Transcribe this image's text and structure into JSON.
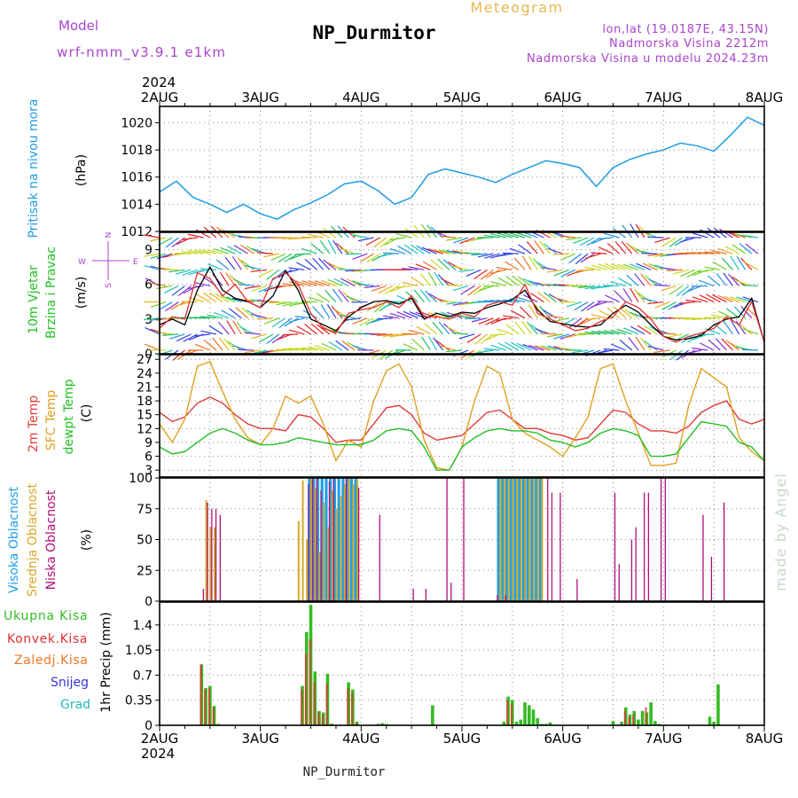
{
  "header": {
    "model_label": "Model",
    "model_name": "wrf-nmm_v3.9.1 e1km",
    "title": "Meteogram",
    "station": "NP_Durmitor",
    "lonlat": "lon,lat (19.0187E, 43.15N)",
    "altitude": "Nadmorska Visina 2212m",
    "model_altitude": "Nadmorska Visina u modelu 2024.23m",
    "footer_station": "NP_Durmitor",
    "watermark": "made by Angel"
  },
  "time_axis": {
    "year": "2024",
    "labels": [
      "2AUG",
      "3AUG",
      "4AUG",
      "5AUG",
      "6AUG",
      "7AUG",
      "8AUG"
    ],
    "hours": 144
  },
  "colors": {
    "pressure": "#1e9be6",
    "wind_speed": "#000000",
    "gust": "#e03030",
    "temp_2m": "#e03a3a",
    "temp_sfc": "#e0a020",
    "dewpoint": "#22c022",
    "cloud_high": "#1ea0e6",
    "cloud_mid": "#d4a82a",
    "cloud_low": "#b0107a",
    "precip_total": "#33bb22",
    "precip_conv": "#e03030",
    "precip_frz": "#ee7722",
    "snow": "#3333dd",
    "hail": "#22bbbb",
    "label_green": "#22c022",
    "label_purple": "#aa44cc",
    "label_orange": "#e8b850",
    "label_cyan": "#1ea0e6"
  },
  "panels": {
    "pressure": {
      "labels": [
        "Pritisak na nivou mora",
        "(hPa)"
      ],
      "ticks": [
        "1012",
        "1014",
        "1016",
        "1018",
        "1020"
      ]
    },
    "wind": {
      "labels": [
        "10m Vjetar",
        "Brzina i Pravac",
        "(m/s)"
      ],
      "compass": [
        "N",
        "S",
        "W",
        "E"
      ],
      "ticks": [
        "0",
        "3",
        "6",
        "9"
      ]
    },
    "temp": {
      "labels": [
        "2m Temp",
        "SFC Temp",
        "dewpt Temp",
        "(C)"
      ],
      "ticks": [
        "3",
        "6",
        "9",
        "12",
        "15",
        "18",
        "21",
        "24",
        "27"
      ]
    },
    "cloud": {
      "labels": [
        "Visoka Oblacnost",
        "Srednja Oblacnost",
        "Niska Oblacnost",
        "(%)"
      ],
      "ticks": [
        "0",
        "25",
        "50",
        "75",
        "100"
      ]
    },
    "precip": {
      "labels": [
        "1hr Precip (mm)"
      ],
      "legend": [
        "Ukupna Kisa",
        "Konvek.Kisa",
        "Zaledj.Kisa",
        "Snijeg",
        "Grad"
      ],
      "ticks": [
        "0",
        "0.35",
        "0.7",
        "1.05",
        "1.4"
      ]
    }
  },
  "chart_data": [
    {
      "type": "line",
      "title": "Pritisak na nivou mora",
      "ylabel": "(hPa)",
      "ylim": [
        1012,
        1021.2
      ],
      "series": [
        {
          "x_hours": [
            0,
            4,
            8,
            12,
            16,
            20,
            24,
            28,
            32,
            36,
            40,
            44,
            48,
            52,
            56,
            60,
            64,
            68,
            72,
            76,
            80,
            84,
            88,
            92,
            96,
            100,
            104,
            108,
            112,
            116,
            120,
            124,
            128,
            132,
            136,
            140,
            144
          ],
          "values": [
            1014.9,
            1015.7,
            1014.5,
            1014.0,
            1013.4,
            1014.0,
            1013.3,
            1012.9,
            1013.6,
            1014.1,
            1014.7,
            1015.5,
            1015.7,
            1015.0,
            1014.0,
            1014.5,
            1016.2,
            1016.6,
            1016.3,
            1016.0,
            1015.6,
            1016.2,
            1016.7,
            1017.2,
            1017.0,
            1016.7,
            1015.3,
            1016.7,
            1017.3,
            1017.7,
            1018.0,
            1018.5,
            1018.3,
            1017.9,
            1019.1,
            1020.4,
            1019.8
          ]
        }
      ]
    },
    {
      "type": "line",
      "title": "10m Vjetar Brzina i Pravac",
      "ylabel": "(m/s)",
      "ylim": [
        0,
        10.5
      ],
      "series": [
        {
          "x_hours": [
            0,
            3,
            6,
            9,
            12,
            15,
            18,
            21,
            24,
            27,
            30,
            33,
            36,
            39,
            42,
            45,
            48,
            51,
            54,
            57,
            60,
            63,
            66,
            69,
            72,
            75,
            78,
            81,
            84,
            87,
            90,
            93,
            96,
            99,
            102,
            105,
            108,
            111,
            114,
            117,
            120,
            123,
            126,
            129,
            132,
            135,
            138,
            141,
            144
          ],
          "values": [
            2.5,
            3.0,
            2.5,
            5.5,
            7.5,
            5.5,
            4.8,
            4.5,
            4.0,
            5.0,
            7.2,
            5.5,
            3.0,
            2.5,
            2.0,
            3.2,
            4.0,
            4.5,
            4.6,
            4.3,
            4.8,
            3.0,
            3.5,
            3.2,
            3.6,
            3.5,
            4.0,
            4.3,
            4.7,
            5.5,
            3.8,
            2.8,
            2.6,
            2.4,
            2.3,
            2.5,
            3.5,
            4.2,
            3.6,
            2.5,
            1.5,
            1.2,
            1.3,
            1.6,
            2.5,
            3.0,
            3.2,
            4.8,
            1.0
          ]
        },
        {
          "x_hours": [
            0,
            3,
            6,
            9,
            12,
            15,
            18,
            21,
            24,
            27,
            30,
            33,
            36,
            39,
            42,
            45,
            48,
            51,
            54,
            57,
            60,
            63,
            66,
            69,
            72,
            75,
            78,
            81,
            84,
            87,
            90,
            93,
            96,
            99,
            102,
            105,
            108,
            111,
            114,
            117,
            120,
            123,
            126,
            129,
            132,
            135,
            138,
            141,
            144
          ],
          "values": [
            2.2,
            3.2,
            3.0,
            7.0,
            6.5,
            5.0,
            6.0,
            4.5,
            4.0,
            6.5,
            7.0,
            6.0,
            3.5,
            2.2,
            1.8,
            3.5,
            3.8,
            4.0,
            4.5,
            4.0,
            5.0,
            3.2,
            3.2,
            3.0,
            3.5,
            3.2,
            4.2,
            4.5,
            4.2,
            6.0,
            3.5,
            3.0,
            2.5,
            2.0,
            2.2,
            2.8,
            3.2,
            4.5,
            4.0,
            3.0,
            1.5,
            1.0,
            1.5,
            1.8,
            2.2,
            3.2,
            2.5,
            4.5,
            1.0
          ]
        }
      ]
    },
    {
      "type": "line",
      "title": "Temp",
      "ylabel": "(C)",
      "ylim": [
        1.5,
        28
      ],
      "series": [
        {
          "x_hours": [
            0,
            3,
            6,
            9,
            12,
            15,
            18,
            21,
            24,
            27,
            30,
            33,
            36,
            39,
            42,
            45,
            48,
            51,
            54,
            57,
            60,
            63,
            66,
            69,
            72,
            75,
            78,
            81,
            84,
            87,
            90,
            93,
            96,
            99,
            102,
            105,
            108,
            111,
            114,
            117,
            120,
            123,
            126,
            129,
            132,
            135,
            138,
            141,
            144
          ],
          "values": [
            15.5,
            13.5,
            14.5,
            17.5,
            18.8,
            17.5,
            15.0,
            13.0,
            12.0,
            12.0,
            11.5,
            15.0,
            14.5,
            12.0,
            9.0,
            9.5,
            9.5,
            13.0,
            16.5,
            17.0,
            15.0,
            11.0,
            9.5,
            10.0,
            10.5,
            13.0,
            15.5,
            16.0,
            14.0,
            12.0,
            12.0,
            11.0,
            10.5,
            9.5,
            10.0,
            13.0,
            16.0,
            15.5,
            13.0,
            11.5,
            11.5,
            11.0,
            12.5,
            15.5,
            17.0,
            18.0,
            14.0,
            13.0,
            14.0
          ]
        },
        {
          "x_hours": [
            0,
            3,
            6,
            9,
            12,
            15,
            18,
            21,
            24,
            27,
            30,
            33,
            36,
            39,
            42,
            45,
            48,
            51,
            54,
            57,
            60,
            63,
            66,
            69,
            72,
            75,
            78,
            81,
            84,
            87,
            90,
            93,
            96,
            99,
            102,
            105,
            108,
            111,
            114,
            117,
            120,
            123,
            126,
            129,
            132,
            135,
            138,
            141,
            144
          ],
          "values": [
            13.0,
            9.0,
            14.0,
            25.5,
            26.5,
            20.0,
            14.0,
            10.0,
            8.5,
            12.0,
            19.0,
            17.5,
            19.0,
            13.0,
            5.0,
            9.5,
            8.0,
            18.0,
            24.5,
            26.0,
            21.0,
            9.5,
            3.5,
            3.0,
            8.0,
            18.0,
            25.5,
            24.0,
            14.0,
            11.0,
            9.5,
            8.0,
            6.0,
            10.0,
            14.5,
            25.0,
            26.0,
            18.0,
            11.0,
            4.0,
            4.0,
            4.5,
            17.0,
            25.0,
            23.0,
            21.0,
            10.0,
            7.0,
            5.0
          ]
        },
        {
          "x_hours": [
            0,
            3,
            6,
            9,
            12,
            15,
            18,
            21,
            24,
            27,
            30,
            33,
            36,
            39,
            42,
            45,
            48,
            51,
            54,
            57,
            60,
            63,
            66,
            69,
            72,
            75,
            78,
            81,
            84,
            87,
            90,
            93,
            96,
            99,
            102,
            105,
            108,
            111,
            114,
            117,
            120,
            123,
            126,
            129,
            132,
            135,
            138,
            141,
            144
          ],
          "values": [
            8.0,
            6.5,
            7.0,
            9.0,
            11.0,
            12.0,
            11.0,
            9.5,
            8.5,
            8.5,
            9.0,
            10.0,
            9.5,
            9.0,
            8.5,
            8.5,
            8.5,
            9.5,
            11.5,
            12.0,
            11.5,
            8.0,
            3.0,
            3.0,
            8.0,
            10.0,
            11.5,
            12.0,
            11.5,
            11.5,
            11.0,
            9.5,
            9.0,
            8.0,
            9.0,
            11.0,
            12.0,
            11.5,
            10.5,
            6.0,
            6.0,
            6.5,
            10.0,
            13.5,
            13.0,
            12.5,
            9.0,
            8.0,
            5.0
          ]
        }
      ]
    },
    {
      "type": "bar",
      "title": "Oblacnost",
      "ylabel": "(%)",
      "ylim": [
        0,
        100
      ],
      "series": [
        {
          "x_hours": [
            36,
            37,
            38,
            39,
            40,
            41,
            42,
            43,
            44,
            45,
            46,
            47,
            81,
            82,
            83,
            84,
            85,
            86,
            87,
            88,
            89,
            90,
            91
          ],
          "values": [
            100,
            100,
            100,
            100,
            100,
            100,
            100,
            100,
            100,
            100,
            100,
            100,
            100,
            100,
            100,
            100,
            100,
            100,
            100,
            100,
            100,
            100,
            100
          ]
        },
        {
          "x_hours": [
            11,
            12,
            13,
            33,
            34,
            35,
            36,
            37,
            38,
            39,
            40,
            41,
            42,
            43,
            44,
            45,
            46,
            47,
            81,
            82,
            83,
            84,
            85,
            86,
            87,
            88,
            89,
            90,
            91
          ],
          "values": [
            82,
            60,
            60,
            65,
            98,
            50,
            100,
            92,
            40,
            80,
            60,
            90,
            75,
            85,
            95,
            100,
            95,
            100,
            100,
            100,
            100,
            100,
            100,
            100,
            100,
            100,
            100,
            100,
            100
          ]
        },
        {
          "x_hours": [
            10,
            11,
            12,
            13,
            14,
            35,
            36,
            37,
            38,
            40,
            41,
            44,
            47,
            52,
            60,
            63,
            68,
            69,
            72,
            80,
            82,
            92,
            93,
            95,
            99,
            108,
            109,
            112,
            113,
            115,
            116,
            119,
            120,
            129,
            131,
            134
          ],
          "values": [
            10,
            80,
            75,
            75,
            70,
            95,
            100,
            100,
            90,
            97,
            100,
            100,
            92,
            70,
            10,
            10,
            100,
            15,
            100,
            5,
            5,
            100,
            88,
            88,
            18,
            88,
            30,
            50,
            60,
            88,
            88,
            100,
            100,
            70,
            36,
            80
          ]
        }
      ]
    },
    {
      "type": "bar",
      "title": "1hr Precip",
      "ylabel": "(mm)",
      "ylim": [
        0,
        1.72
      ],
      "series": [
        {
          "x_hours": [
            10,
            11,
            12,
            13,
            14,
            34,
            35,
            36,
            37,
            38,
            39,
            40,
            41,
            45,
            46,
            47,
            52,
            53,
            54,
            65,
            82,
            83,
            84,
            85,
            86,
            87,
            88,
            89,
            90,
            91,
            92,
            93,
            108,
            110,
            111,
            112,
            113,
            114,
            115,
            116,
            117,
            118,
            119,
            131,
            132,
            133
          ],
          "values": [
            0.85,
            0.52,
            0.55,
            0.27,
            0.02,
            0.55,
            1.3,
            1.68,
            0.75,
            0.2,
            0.18,
            0.72,
            0.02,
            0.6,
            0.5,
            0.05,
            0.02,
            0.03,
            0.02,
            0.28,
            0.05,
            0.4,
            0.35,
            0.05,
            0.08,
            0.32,
            0.28,
            0.22,
            0.1,
            0.02,
            0.02,
            0.04,
            0.06,
            0.05,
            0.25,
            0.15,
            0.2,
            0.08,
            0.2,
            0.18,
            0.32,
            0.06,
            0.02,
            0.12,
            0.05,
            0.57
          ]
        },
        {
          "x_hours": [
            10,
            11,
            12,
            13,
            34,
            35,
            36,
            37,
            38,
            39,
            40,
            41,
            45,
            46,
            47,
            83,
            84,
            111,
            112,
            113,
            116
          ],
          "values": [
            0.85,
            0.5,
            0.52,
            0.25,
            0.5,
            1.0,
            1.2,
            0.6,
            0.18,
            0.15,
            0.58,
            0.02,
            0.52,
            0.45,
            0.04,
            0.35,
            0.3,
            0.2,
            0.12,
            0.15,
            0.25
          ]
        }
      ]
    }
  ]
}
